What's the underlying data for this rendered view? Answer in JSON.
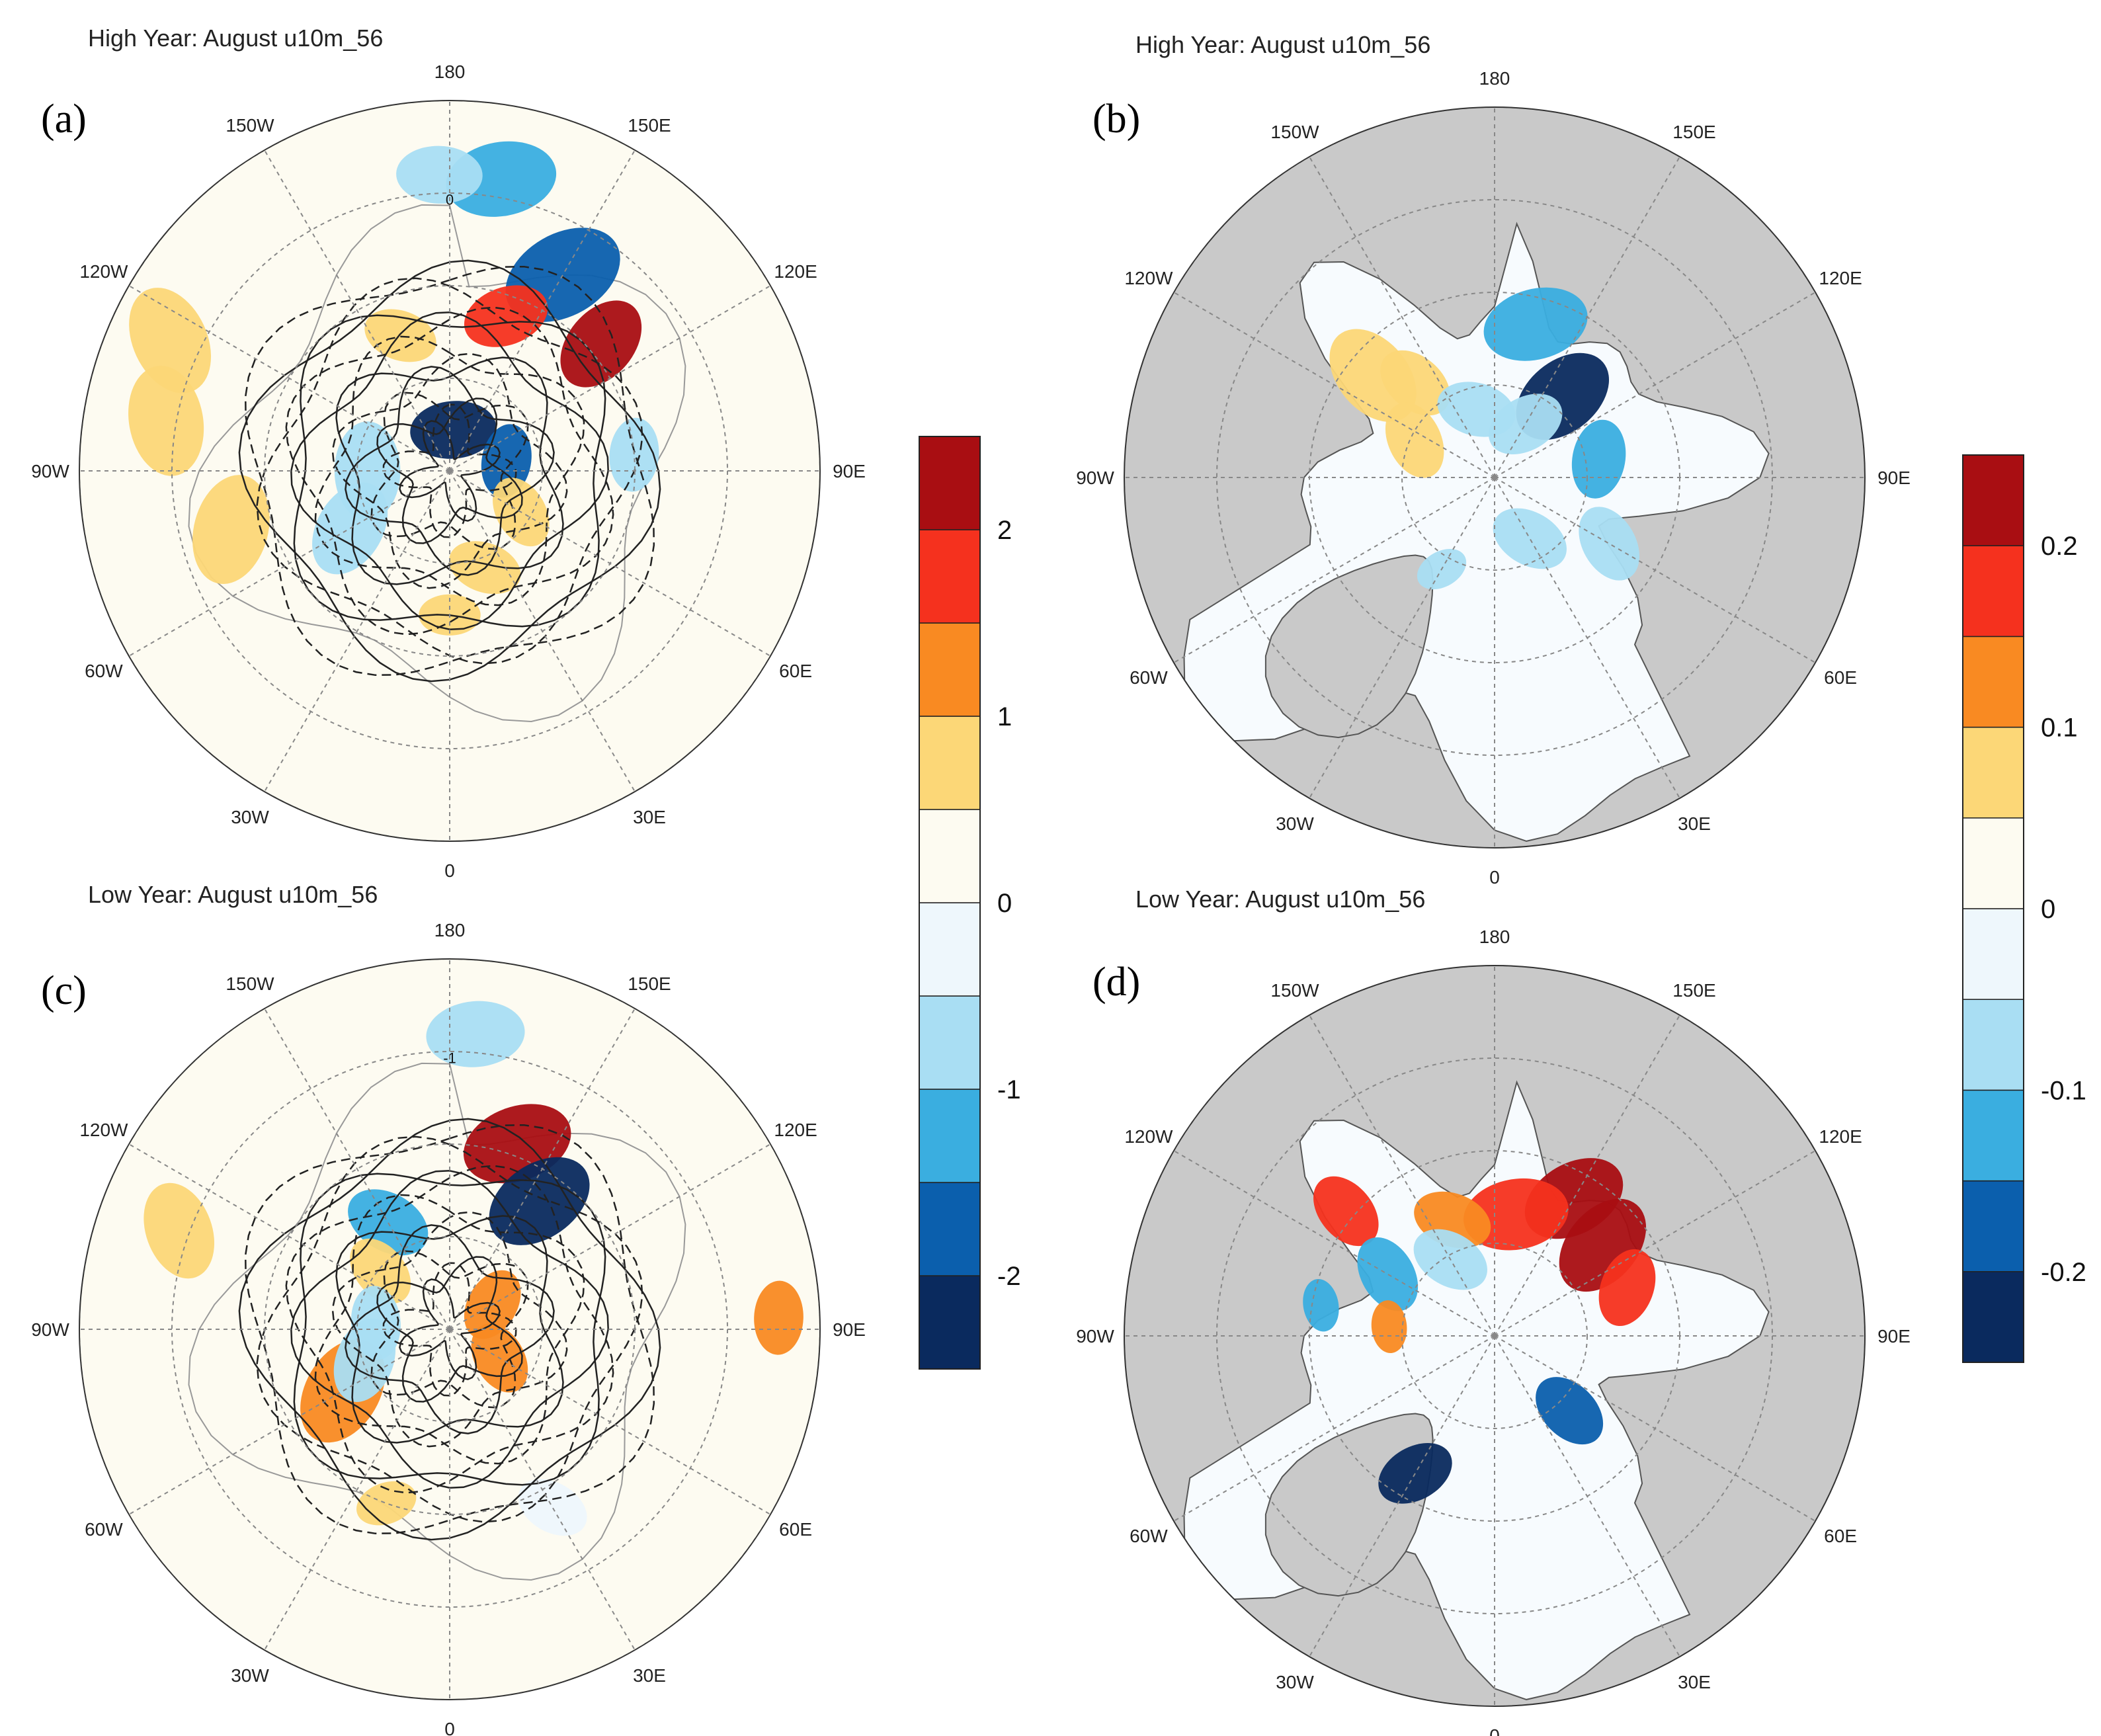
{
  "figure": {
    "panels": [
      {
        "id": "a",
        "label": "(a)",
        "title": "High Year: August u10m_56",
        "kind": "hemisphere",
        "scale": "left",
        "contour_label": "0",
        "anomalies": [
          {
            "lon": 170,
            "colat": 72,
            "r": 9,
            "v": -1.2
          },
          {
            "lon": -178,
            "colat": 72,
            "r": 7,
            "v": -0.8
          },
          {
            "lon": 150,
            "colat": 55,
            "r": 10,
            "v": -1.8
          },
          {
            "lon": 130,
            "colat": 48,
            "r": 8,
            "v": 2.2
          },
          {
            "lon": 160,
            "colat": 40,
            "r": 7,
            "v": 1.5
          },
          {
            "lon": -160,
            "colat": 35,
            "r": 6,
            "v": 0.8
          },
          {
            "lon": 175,
            "colat": 10,
            "r": 7,
            "v": -2.4
          },
          {
            "lon": 100,
            "colat": 14,
            "r": 6,
            "v": -2.0
          },
          {
            "lon": -90,
            "colat": 20,
            "r": 8,
            "v": -1.0
          },
          {
            "lon": -60,
            "colat": 28,
            "r": 8,
            "v": -0.6
          },
          {
            "lon": 20,
            "colat": 25,
            "r": 6,
            "v": 0.8
          },
          {
            "lon": 60,
            "colat": 20,
            "r": 6,
            "v": 0.9
          },
          {
            "lon": -115,
            "colat": 75,
            "r": 9,
            "v": 0.7
          },
          {
            "lon": -100,
            "colat": 70,
            "r": 9,
            "v": 0.7
          },
          {
            "lon": -75,
            "colat": 55,
            "r": 9,
            "v": 0.6
          },
          {
            "lon": 95,
            "colat": 45,
            "r": 6,
            "v": -0.7
          },
          {
            "lon": 0,
            "colat": 35,
            "r": 5,
            "v": 0.6
          }
        ]
      },
      {
        "id": "b",
        "label": "(b)",
        "title": "High Year: August u10m_56",
        "kind": "arctic",
        "scale": "right",
        "anomalies": [
          {
            "lon": 140,
            "colat": 12,
            "r": 4,
            "v": -0.22
          },
          {
            "lon": 165,
            "colat": 18,
            "r": 4,
            "v": -0.15
          },
          {
            "lon": 150,
            "colat": 7,
            "r": 3,
            "v": -0.08
          },
          {
            "lon": -130,
            "colat": 18,
            "r": 4,
            "v": 0.07
          },
          {
            "lon": -140,
            "colat": 14,
            "r": 3,
            "v": 0.08
          },
          {
            "lon": -115,
            "colat": 10,
            "r": 3,
            "v": 0.06
          },
          {
            "lon": -165,
            "colat": 8,
            "r": 3,
            "v": -0.07
          },
          {
            "lon": 30,
            "colat": 8,
            "r": 3,
            "v": -0.08
          },
          {
            "lon": 60,
            "colat": 15,
            "r": 3,
            "v": -0.09
          },
          {
            "lon": -30,
            "colat": 12,
            "r": 2,
            "v": -0.1
          },
          {
            "lon": 100,
            "colat": 12,
            "r": 3,
            "v": -0.12
          }
        ]
      },
      {
        "id": "c",
        "label": "(c)",
        "title": "Low Year: August u10m_56",
        "kind": "hemisphere",
        "scale": "left",
        "contour_label": "-1",
        "anomalies": [
          {
            "lon": 175,
            "colat": 72,
            "r": 8,
            "v": -1.0
          },
          {
            "lon": 160,
            "colat": 48,
            "r": 9,
            "v": 2.3
          },
          {
            "lon": 145,
            "colat": 38,
            "r": 9,
            "v": -2.3
          },
          {
            "lon": -150,
            "colat": 30,
            "r": 7,
            "v": -1.2
          },
          {
            "lon": -130,
            "colat": 22,
            "r": 6,
            "v": 0.9
          },
          {
            "lon": 120,
            "colat": 12,
            "r": 6,
            "v": 1.4
          },
          {
            "lon": 60,
            "colat": 14,
            "r": 6,
            "v": 1.3
          },
          {
            "lon": -60,
            "colat": 30,
            "r": 9,
            "v": 1.2
          },
          {
            "lon": -70,
            "colat": 22,
            "r": 7,
            "v": -0.8
          },
          {
            "lon": -95,
            "colat": 18,
            "r": 6,
            "v": -0.6
          },
          {
            "lon": -110,
            "colat": 70,
            "r": 8,
            "v": 0.7
          },
          {
            "lon": 92,
            "colat": 80,
            "r": 6,
            "v": 1.0
          },
          {
            "lon": 30,
            "colat": 50,
            "r": 6,
            "v": -0.5
          },
          {
            "lon": -20,
            "colat": 45,
            "r": 5,
            "v": 0.5
          }
        ]
      },
      {
        "id": "d",
        "label": "(d)",
        "title": "Low Year: August u10m_56",
        "kind": "arctic",
        "scale": "right",
        "anomalies": [
          {
            "lon": 150,
            "colat": 18,
            "r": 4,
            "v": 0.2
          },
          {
            "lon": 130,
            "colat": 16,
            "r": 4,
            "v": 0.25
          },
          {
            "lon": 170,
            "colat": 14,
            "r": 4,
            "v": 0.18
          },
          {
            "lon": -160,
            "colat": 14,
            "r": 3,
            "v": 0.12
          },
          {
            "lon": -130,
            "colat": 22,
            "r": 3,
            "v": 0.16
          },
          {
            "lon": 110,
            "colat": 16,
            "r": 3,
            "v": 0.18
          },
          {
            "lon": -120,
            "colat": 14,
            "r": 3,
            "v": -0.14
          },
          {
            "lon": -150,
            "colat": 10,
            "r": 3,
            "v": -0.08
          },
          {
            "lon": -30,
            "colat": 18,
            "r": 3,
            "v": -0.25
          },
          {
            "lon": 45,
            "colat": 12,
            "r": 3,
            "v": -0.18
          },
          {
            "lon": -95,
            "colat": 12,
            "r": 2,
            "v": 0.1
          },
          {
            "lon": -100,
            "colat": 20,
            "r": 2,
            "v": -0.12
          }
        ]
      }
    ],
    "longitude_labels": [
      {
        "text": "180",
        "lon": 180
      },
      {
        "text": "150E",
        "lon": 150
      },
      {
        "text": "120E",
        "lon": 120
      },
      {
        "text": "90E",
        "lon": 90
      },
      {
        "text": "60E",
        "lon": 60
      },
      {
        "text": "30E",
        "lon": 30
      },
      {
        "text": "0",
        "lon": 0
      },
      {
        "text": "30W",
        "lon": -30
      },
      {
        "text": "60W",
        "lon": -60
      },
      {
        "text": "90W",
        "lon": -90
      },
      {
        "text": "120W",
        "lon": -120
      },
      {
        "text": "150W",
        "lon": -150
      }
    ],
    "colorbars": [
      {
        "name": "left",
        "levels": [
          -2.5,
          -2,
          -1.5,
          -1,
          -0.5,
          0,
          0.5,
          1,
          1.5,
          2,
          2.5
        ],
        "labels": [
          "2",
          "1",
          "0",
          "-1",
          "-2"
        ],
        "label_values": [
          2,
          1,
          0,
          -1,
          -2
        ]
      },
      {
        "name": "right",
        "levels": [
          -0.25,
          -0.2,
          -0.15,
          -0.1,
          -0.05,
          0,
          0.05,
          0.1,
          0.15,
          0.2,
          0.25
        ],
        "labels": [
          "0.2",
          "0.1",
          "0",
          "-0.1",
          "-0.2"
        ],
        "label_values": [
          0.2,
          0.1,
          0,
          -0.1,
          -0.2
        ]
      }
    ],
    "palette": [
      "#0a2a5e",
      "#0b5fad",
      "#3aaee0",
      "#a9def3",
      "#eef7fc",
      "#fdfbf1",
      "#fcd777",
      "#f98a22",
      "#f5311e",
      "#a90e12"
    ],
    "land_color": "#c9c9c9",
    "grid_color": "#888888",
    "contour_color": "#222222"
  }
}
